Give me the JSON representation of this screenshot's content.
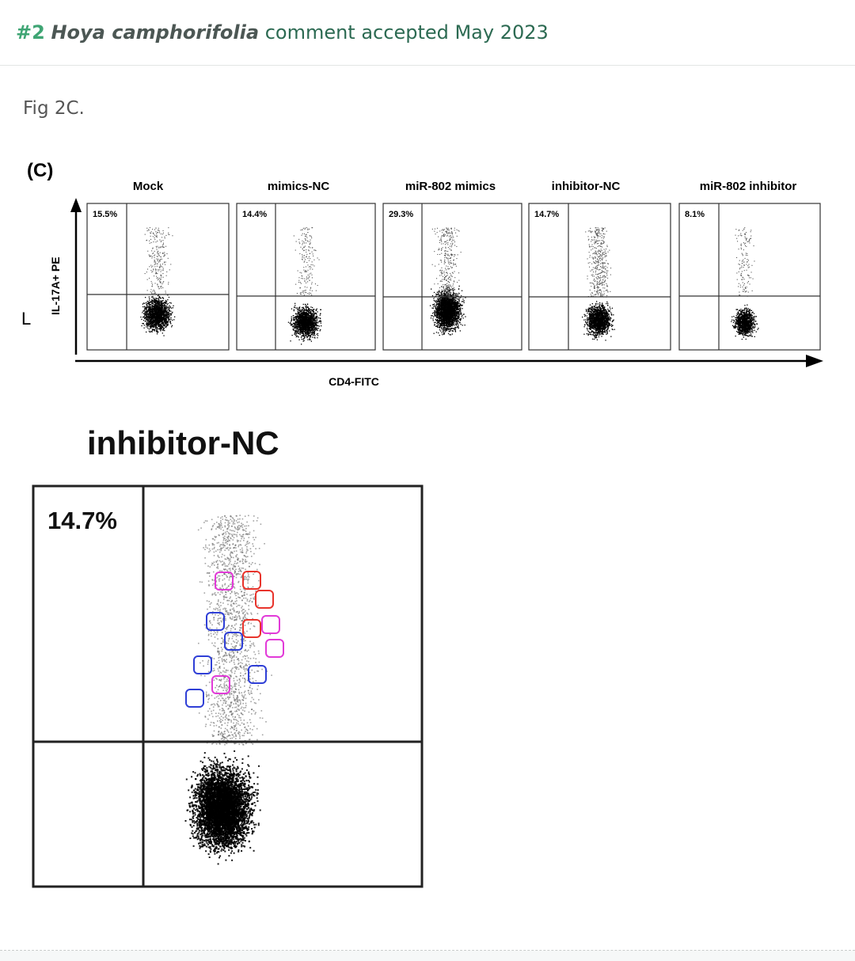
{
  "header": {
    "number": "#2",
    "species": "Hoya camphorifolia",
    "status": "comment accepted May 2023"
  },
  "comment": {
    "text": "Fig 2C."
  },
  "figure": {
    "panel_label": "(C)",
    "y_axis_label": "IL-17A+ PE",
    "x_axis_label": "CD4-FITC",
    "side_mark": "L",
    "panels": [
      {
        "title": "Mock",
        "percent": "15.5%"
      },
      {
        "title": "mimics-NC",
        "percent": "14.4%"
      },
      {
        "title": "miR-802 mimics",
        "percent": "29.3%"
      },
      {
        "title": "inhibitor-NC",
        "percent": "14.7%"
      },
      {
        "title": "miR-802 inhibitor",
        "percent": "8.1%"
      }
    ]
  },
  "zoom": {
    "title": "inhibitor-NC",
    "percent": "14.7%",
    "box_colors": {
      "red": "#e8342c",
      "blue": "#2f3fd6",
      "magenta": "#e23ad8"
    }
  }
}
